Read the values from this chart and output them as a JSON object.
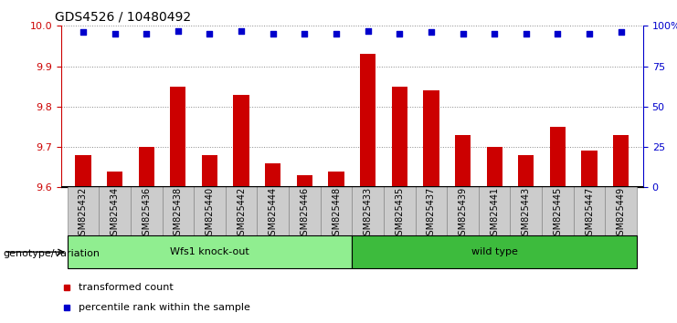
{
  "title": "GDS4526 / 10480492",
  "samples": [
    "GSM825432",
    "GSM825434",
    "GSM825436",
    "GSM825438",
    "GSM825440",
    "GSM825442",
    "GSM825444",
    "GSM825446",
    "GSM825448",
    "GSM825433",
    "GSM825435",
    "GSM825437",
    "GSM825439",
    "GSM825441",
    "GSM825443",
    "GSM825445",
    "GSM825447",
    "GSM825449"
  ],
  "bar_values": [
    9.68,
    9.64,
    9.7,
    9.85,
    9.68,
    9.83,
    9.66,
    9.63,
    9.64,
    9.93,
    9.85,
    9.84,
    9.73,
    9.7,
    9.68,
    9.75,
    9.69,
    9.73
  ],
  "percentile_values": [
    96,
    95,
    95,
    97,
    95,
    97,
    95,
    95,
    95,
    97,
    95,
    96,
    95,
    95,
    95,
    95,
    95,
    96
  ],
  "bar_color": "#cc0000",
  "percentile_color": "#0000cc",
  "ylim_left": [
    9.6,
    10.0
  ],
  "ylim_right": [
    0,
    100
  ],
  "yticks_left": [
    9.6,
    9.7,
    9.8,
    9.9,
    10.0
  ],
  "yticks_right": [
    0,
    25,
    50,
    75,
    100
  ],
  "ytick_labels_right": [
    "0",
    "25",
    "50",
    "75",
    "100%"
  ],
  "groups": [
    {
      "label": "Wfs1 knock-out",
      "start": 0,
      "end": 9,
      "color": "#90ee90"
    },
    {
      "label": "wild type",
      "start": 9,
      "end": 18,
      "color": "#3dbb3d"
    }
  ],
  "group_label": "genotype/variation",
  "legend_items": [
    {
      "label": "transformed count",
      "color": "#cc0000"
    },
    {
      "label": "percentile rank within the sample",
      "color": "#0000cc"
    }
  ],
  "bg_color": "#ffffff",
  "grid_color": "#888888",
  "tick_label_color_left": "#cc0000",
  "tick_label_color_right": "#0000cc",
  "xtick_bg_color": "#cccccc",
  "xtick_border_color": "#888888"
}
